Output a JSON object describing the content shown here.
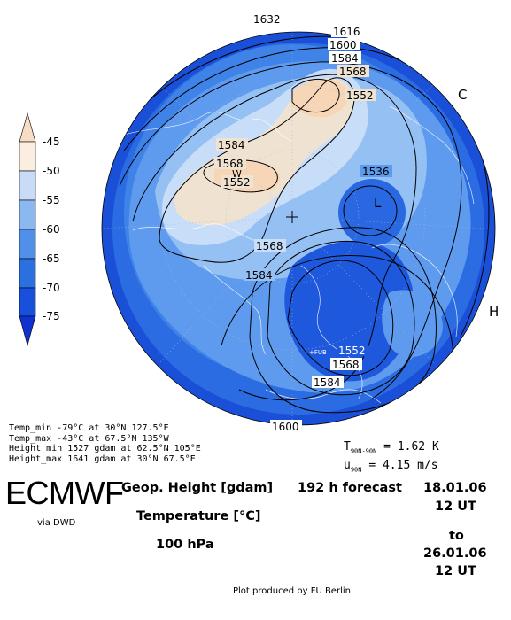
{
  "map": {
    "colorbar": {
      "ticks": [
        "-45",
        "-50",
        "-55",
        "-60",
        "-65",
        "-70",
        "-75"
      ],
      "colors": [
        "#f8dcc4",
        "#fbeee0",
        "#c8dcf8",
        "#8cb8f0",
        "#5090e8",
        "#2c70e0",
        "#1850dc",
        "#1030d0"
      ]
    },
    "contour_labels": [
      "1632",
      "1616",
      "1600",
      "1584",
      "1568",
      "1552",
      "1584",
      "1568",
      "1552",
      "1536",
      "1568",
      "1584",
      "1552",
      "1568",
      "1584",
      "1600"
    ],
    "markers": {
      "low": "L",
      "high_east": "H",
      "cold": "C",
      "warm": "W"
    },
    "station_label": "+FUB"
  },
  "stats": [
    "Temp_min  -79°C at 30°N 127.5°E",
    "Temp_max  -43°C at 67.5°N 135°W",
    "Height_min 1527 gdam at 62.5°N 105°E",
    "Height_max 1641 gdam at 30°N 67.5°E"
  ],
  "diagnostics": {
    "t_line_prefix": "T",
    "t_sub": "90N-90N",
    "t_value": "= 1.62 K",
    "u_prefix": "u",
    "u_sub": "90N",
    "u_value": "= 4.15 m/s"
  },
  "footer": {
    "brand": "ECMWF",
    "via": "via DWD",
    "field1": "Geop. Height [gdam]",
    "forecast": "192 h forecast",
    "field2": "Temperature [°C]",
    "level": "100 hPa",
    "from_date": "18.01.06",
    "from_time": "12 UT",
    "to": "to",
    "to_date": "26.01.06",
    "to_time": "12 UT",
    "credit": "Plot produced by FU Berlin"
  }
}
